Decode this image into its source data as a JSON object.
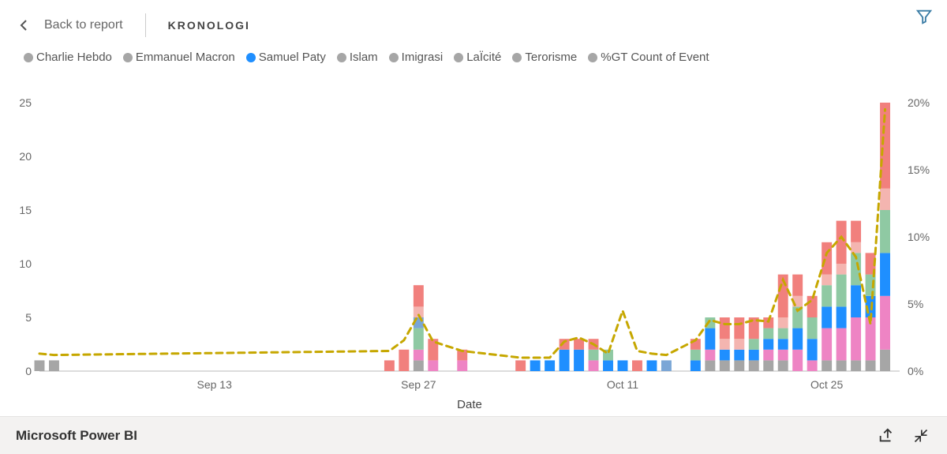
{
  "header": {
    "back_label": "Back to report",
    "crumb": "KRONOLOGI"
  },
  "footer": {
    "brand": "Microsoft Power BI"
  },
  "chart": {
    "type": "stacked-bar-with-line",
    "x_axis_label": "Date",
    "y_left": {
      "min": 0,
      "max": 25,
      "ticks": [
        0,
        5,
        10,
        15,
        20,
        25
      ]
    },
    "y_right": {
      "min": 0,
      "max": 20,
      "ticks": [
        0,
        5,
        10,
        15,
        20
      ],
      "suffix": "%"
    },
    "x_ticks": [
      "Sep 13",
      "Sep 27",
      "Oct 11",
      "Oct 25"
    ],
    "series": [
      {
        "key": "charlie",
        "label": "Charlie Hebdo",
        "color": "#a6a6a6",
        "legend_color": "#a6a6a6"
      },
      {
        "key": "macron",
        "label": "Emmanuel Macron",
        "color": "#ee84c4",
        "legend_color": "#a6a6a6"
      },
      {
        "key": "paty",
        "label": "Samuel Paty",
        "color": "#1f8fff",
        "legend_color": "#1f8fff"
      },
      {
        "key": "islam",
        "label": "Islam",
        "color": "#8fc9a3",
        "legend_color": "#a6a6a6"
      },
      {
        "key": "imigrasi",
        "label": "Imigrasi",
        "color": "#7aa6d6",
        "legend_color": "#a6a6a6"
      },
      {
        "key": "laicite",
        "label": "LaÏcité",
        "color": "#f4b5b0",
        "legend_color": "#a6a6a6"
      },
      {
        "key": "terorisme",
        "label": "Terorisme",
        "color": "#f1807d",
        "legend_color": "#a6a6a6"
      }
    ],
    "line_series": {
      "label": "%GT Count of Event",
      "color": "#c6a700",
      "dash": "8,6",
      "width": 3,
      "legend_dot": "#a6a6a6"
    },
    "background_color": "#ffffff",
    "categories": [
      "Sep 01",
      "Sep 02",
      "Sep 25",
      "Sep 26",
      "Sep 27",
      "Sep 28",
      "Sep 30",
      "Oct 04",
      "Oct 05",
      "Oct 06",
      "Oct 07",
      "Oct 08",
      "Oct 09",
      "Oct 10",
      "Oct 11",
      "Oct 12",
      "Oct 13",
      "Oct 14",
      "Oct 16",
      "Oct 17",
      "Oct 18",
      "Oct 19",
      "Oct 20",
      "Oct 21",
      "Oct 22",
      "Oct 23",
      "Oct 24",
      "Oct 25",
      "Oct 26",
      "Oct 27",
      "Oct 28",
      "Oct 29"
    ],
    "category_positions": [
      0,
      1,
      24,
      25,
      26,
      27,
      29,
      33,
      34,
      35,
      36,
      37,
      38,
      39,
      40,
      41,
      42,
      43,
      45,
      46,
      47,
      48,
      49,
      50,
      51,
      52,
      53,
      54,
      55,
      56,
      57,
      58
    ],
    "x_tick_positions": [
      12,
      26,
      40,
      54
    ],
    "x_domain_max": 59,
    "stacks": {
      "charlie": [
        1,
        1,
        0,
        0,
        1,
        0,
        0,
        0,
        0,
        0,
        0,
        0,
        0,
        0,
        0,
        0,
        0,
        0,
        0,
        1,
        1,
        1,
        1,
        1,
        1,
        0,
        0,
        1,
        1,
        1,
        1,
        2
      ],
      "macron": [
        0,
        0,
        0,
        0,
        1,
        1,
        1,
        0,
        0,
        0,
        0,
        0,
        1,
        0,
        0,
        0,
        0,
        0,
        0,
        1,
        0,
        0,
        0,
        1,
        1,
        2,
        1,
        3,
        3,
        4,
        4,
        5
      ],
      "paty": [
        0,
        0,
        0,
        0,
        0,
        0,
        0,
        0,
        1,
        1,
        2,
        2,
        0,
        1,
        1,
        0,
        1,
        0,
        1,
        2,
        1,
        1,
        1,
        1,
        1,
        2,
        2,
        2,
        2,
        3,
        2,
        4
      ],
      "islam": [
        0,
        0,
        0,
        0,
        2,
        0,
        0,
        0,
        0,
        0,
        0,
        0,
        1,
        1,
        0,
        0,
        0,
        0,
        1,
        1,
        0,
        0,
        1,
        1,
        1,
        2,
        2,
        2,
        3,
        3,
        2,
        4
      ],
      "imigrasi": [
        0,
        0,
        0,
        0,
        1,
        0,
        0,
        0,
        0,
        0,
        0,
        0,
        0,
        0,
        0,
        0,
        0,
        1,
        0,
        0,
        0,
        0,
        0,
        0,
        0,
        0,
        0,
        0,
        0,
        0,
        0,
        0
      ],
      "laicite": [
        0,
        0,
        0,
        0,
        1,
        0,
        0,
        0,
        0,
        0,
        0,
        0,
        0,
        0,
        0,
        0,
        0,
        0,
        0,
        0,
        1,
        1,
        0,
        0,
        1,
        1,
        0,
        1,
        1,
        1,
        0,
        2
      ],
      "terorisme": [
        0,
        0,
        1,
        2,
        2,
        2,
        1,
        1,
        0,
        0,
        1,
        1,
        1,
        0,
        0,
        1,
        0,
        0,
        1,
        0,
        2,
        2,
        2,
        1,
        4,
        2,
        2,
        3,
        4,
        2,
        2,
        8
      ]
    },
    "line_values_pct": [
      1.3,
      1.2,
      1.5,
      2.3,
      4.2,
      2.2,
      1.5,
      1.0,
      1.0,
      1.0,
      2.2,
      2.5,
      2.0,
      1.3,
      4.5,
      1.5,
      1.3,
      1.2,
      2.3,
      3.8,
      3.5,
      3.5,
      3.8,
      3.7,
      6.8,
      4.5,
      5.3,
      8.8,
      10.0,
      8.5,
      3.5,
      19.5
    ]
  }
}
